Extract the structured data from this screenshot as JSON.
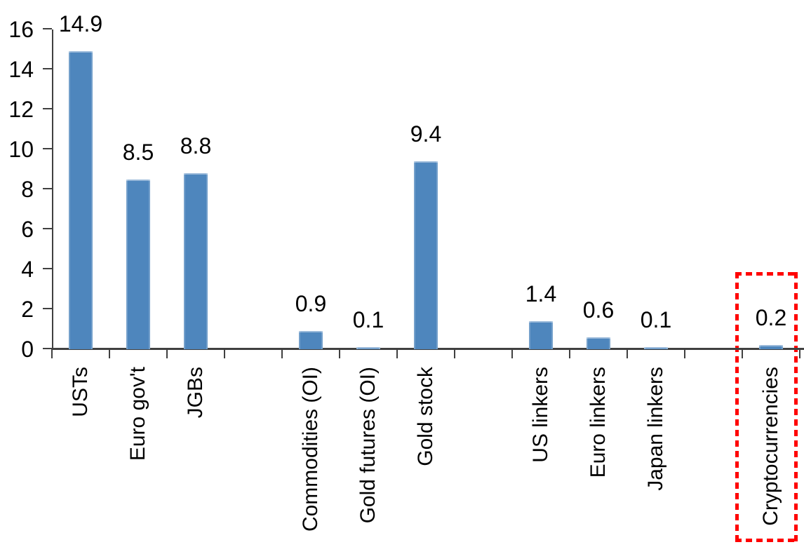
{
  "chart_data": {
    "type": "bar",
    "title": "",
    "xlabel": "",
    "ylabel": "",
    "categories": [
      "USTs",
      "Euro gov't",
      "JGBs",
      "Commodities (OI)",
      "Gold futures (OI)",
      "Gold stock",
      "US linkers",
      "Euro linkers",
      "Japan linkers",
      "Cryptocurrencies"
    ],
    "values": [
      14.9,
      8.5,
      8.8,
      0.9,
      0.1,
      9.4,
      1.4,
      0.6,
      0.1,
      0.2
    ],
    "data_labels": [
      "14.9",
      "8.5",
      "8.8",
      "0.9",
      "0.1",
      "9.4",
      "1.4",
      "0.6",
      "0.1",
      "0.2"
    ],
    "slot_indices": [
      0,
      1,
      2,
      4,
      5,
      6,
      8,
      9,
      10,
      12
    ],
    "total_slots": 13,
    "ylim": [
      0,
      16
    ],
    "yticks": [
      0,
      2,
      4,
      6,
      8,
      10,
      12,
      14,
      16
    ],
    "grid": false,
    "legend": false,
    "bar_color": "#4E86BD",
    "axis_color": "#404040",
    "text_color": "#000000",
    "highlight": {
      "category": "Cryptocurrencies",
      "style": "dotted-box",
      "color": "#FF0000"
    }
  }
}
